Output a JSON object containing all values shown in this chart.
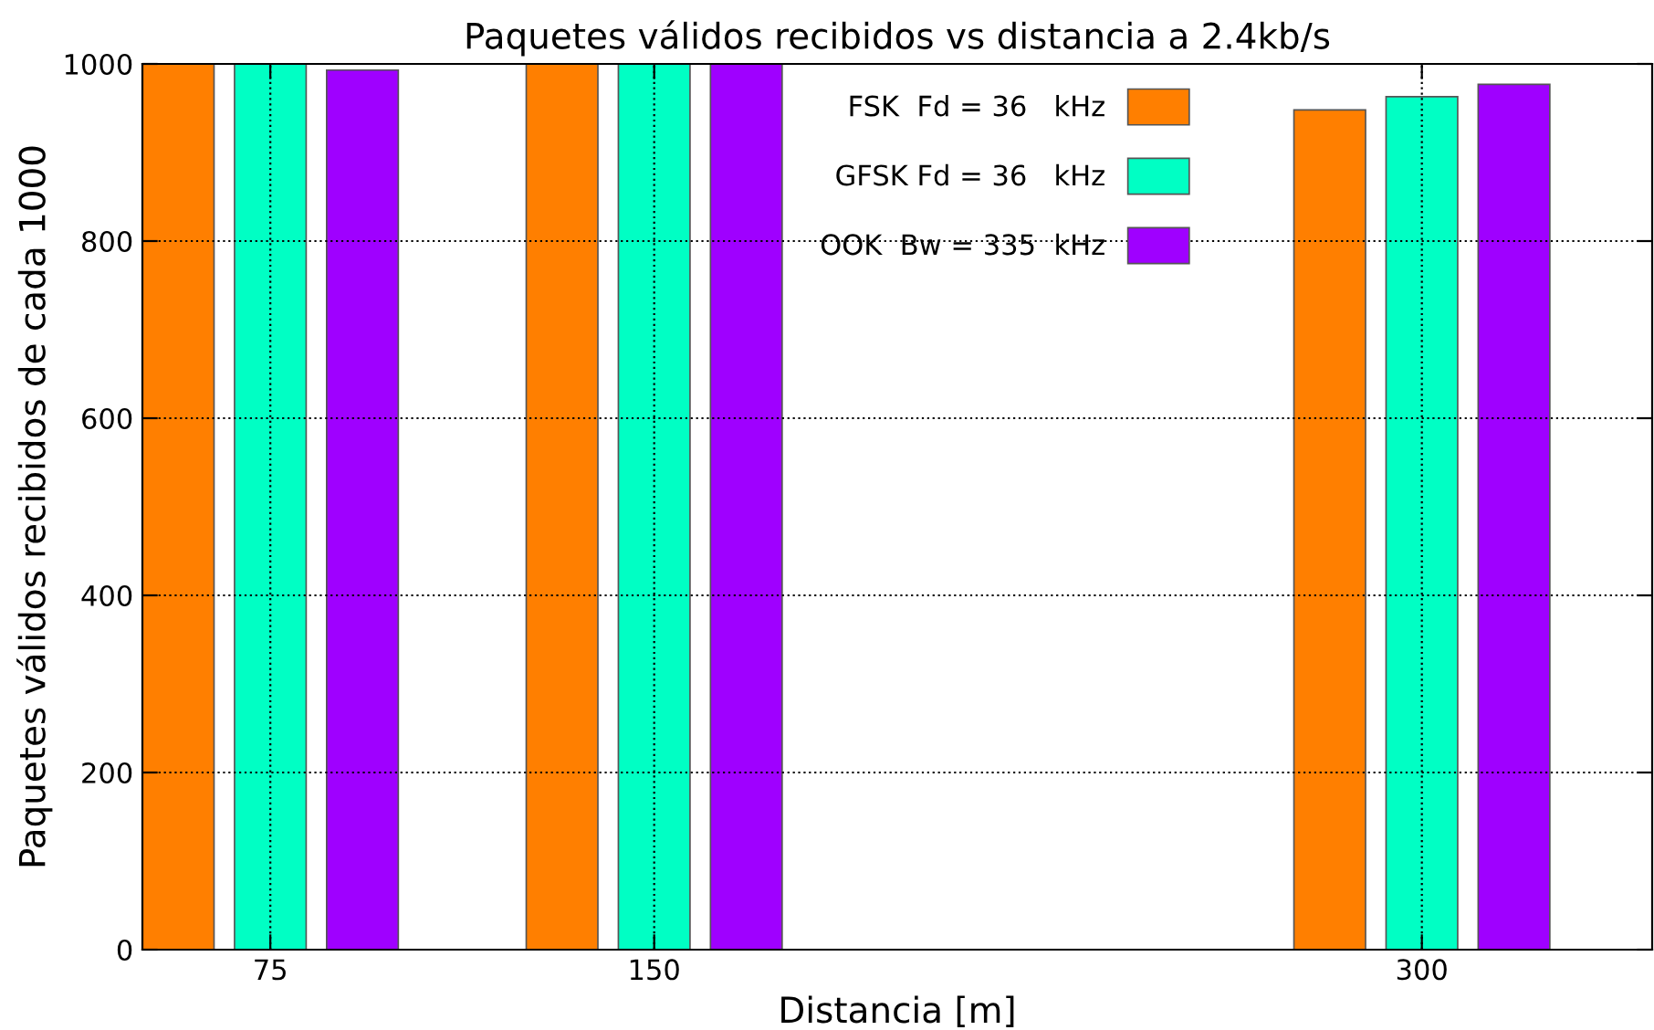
{
  "chart_data": {
    "type": "bar",
    "title": "Paquetes válidos recibidos vs distancia a 2.4kb/s",
    "xlabel": "Distancia [m]",
    "ylabel": "Paquetes válidos recibidos de cada 1000",
    "x": [
      75,
      150,
      300
    ],
    "series": [
      {
        "name": "FSK  Fd = 36   kHz",
        "color": "#ff7f00",
        "values": [
          1000,
          1000,
          948
        ]
      },
      {
        "name": "GFSK Fd = 36   kHz",
        "color": "#00ffc4",
        "values": [
          1000,
          1000,
          963
        ]
      },
      {
        "name": "OOK  Bw = 335  kHz",
        "color": "#9f00ff",
        "values": [
          993,
          1000,
          977
        ]
      }
    ],
    "xlim": [
      50,
      345
    ],
    "xticks": [
      75,
      150,
      300
    ],
    "ylim": [
      0,
      1000
    ],
    "yticks": [
      0,
      200,
      400,
      600,
      800,
      1000
    ],
    "grid": true,
    "legend": "top right"
  }
}
